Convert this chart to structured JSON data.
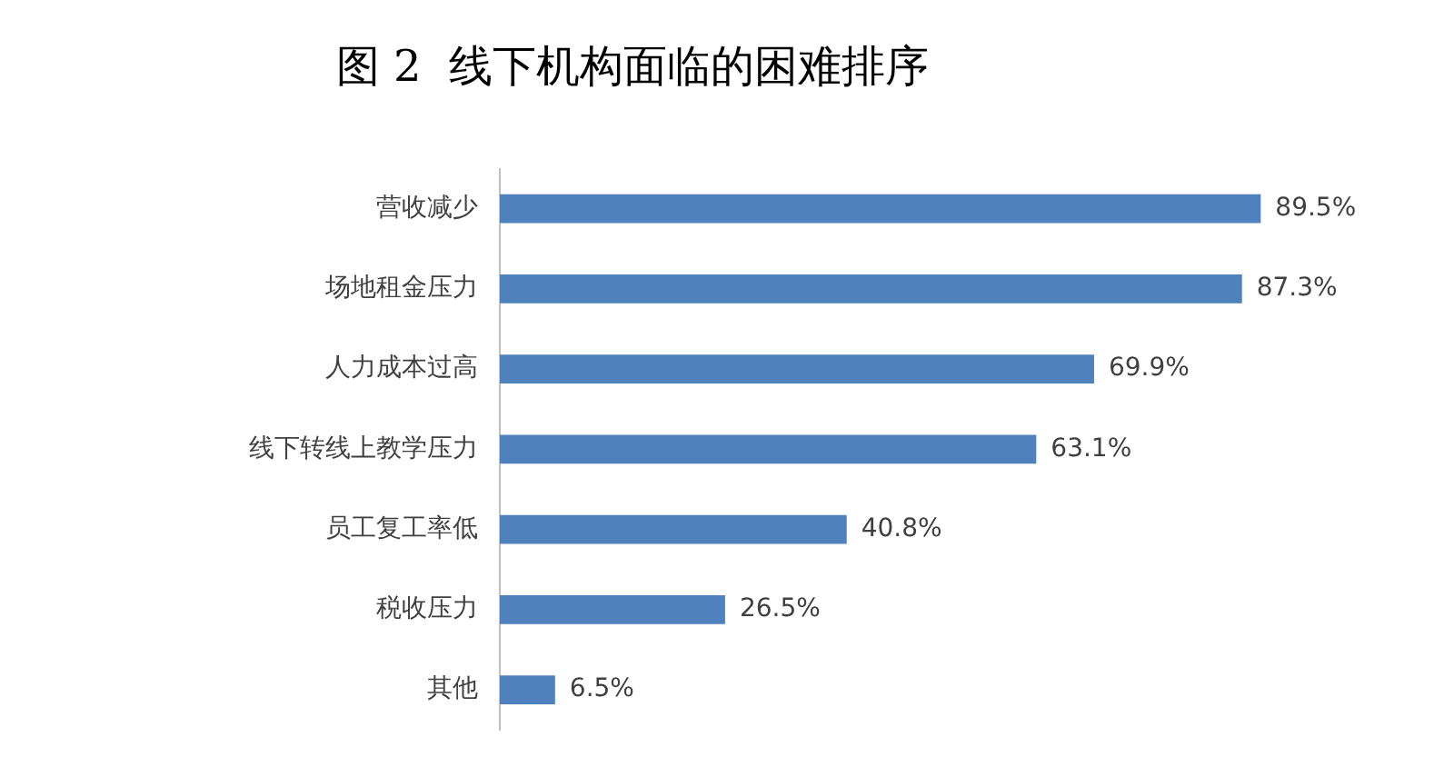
{
  "chart_data": {
    "type": "bar",
    "orientation": "horizontal",
    "title": "图 2  线下机构面临的困难排序",
    "categories": [
      "营收减少",
      "场地租金压力",
      "人力成本过高",
      "线下转线上教学压力",
      "员工复工率低",
      "税收压力",
      "其他"
    ],
    "values": [
      89.5,
      87.3,
      69.9,
      63.1,
      40.8,
      26.5,
      6.5
    ],
    "value_labels": [
      "89.5%",
      "87.3%",
      "69.9%",
      "63.1%",
      "40.8%",
      "26.5%",
      "6.5%"
    ],
    "color": "#4f81bd",
    "grid": false,
    "legend": false,
    "tick_labels": "y"
  }
}
